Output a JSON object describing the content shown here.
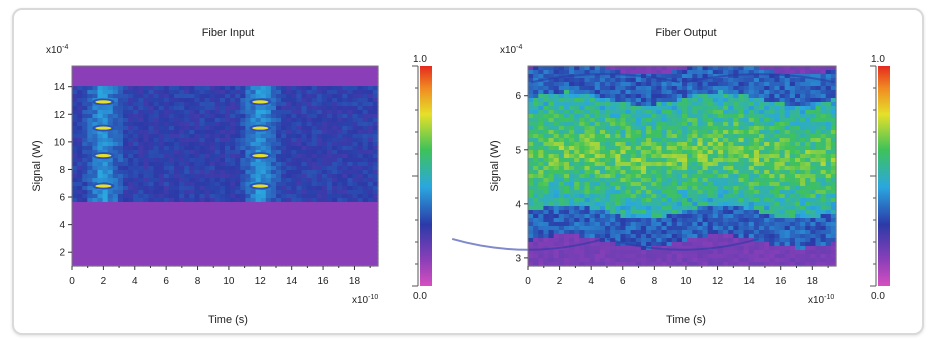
{
  "chart_data": [
    {
      "type": "heatmap",
      "title": "Fiber Input",
      "xlabel": "Time (s)",
      "ylabel": "Signal (W)",
      "x_multiplier": "x10",
      "x_multiplier_exp": "-10",
      "y_multiplier": "x10",
      "y_multiplier_exp": "-4",
      "xlim": [
        0,
        19.5
      ],
      "ylim": [
        1,
        15.5
      ],
      "xticks": [
        0,
        2,
        4,
        6,
        8,
        10,
        12,
        14,
        16,
        18
      ],
      "yticks": [
        2,
        4,
        6,
        8,
        10,
        12,
        14
      ],
      "colorbar": {
        "min": 0.0,
        "max": 1.0,
        "min_label": "0.0",
        "max_label": "1.0"
      },
      "background_level": 0.12,
      "pulse_times": [
        2,
        12
      ],
      "levels": [
        6.8,
        9.0,
        11.0,
        12.9
      ],
      "grid": false
    },
    {
      "type": "heatmap",
      "title": "Fiber Output",
      "xlabel": "Time (s)",
      "ylabel": "Signal (W)",
      "x_multiplier": "x10",
      "x_multiplier_exp": "-10",
      "y_multiplier": "x10",
      "y_multiplier_exp": "-4",
      "xlim": [
        0,
        19.5
      ],
      "ylim": [
        2.85,
        6.55
      ],
      "xticks": [
        0,
        2,
        4,
        6,
        8,
        10,
        12,
        14,
        16,
        18
      ],
      "yticks": [
        3,
        4,
        5,
        6
      ],
      "colorbar": {
        "min": 0.0,
        "max": 1.0,
        "min_label": "0.0",
        "max_label": "1.0"
      },
      "band_center": 4.9,
      "band_halfwidth": 1.05,
      "grid": false
    }
  ]
}
